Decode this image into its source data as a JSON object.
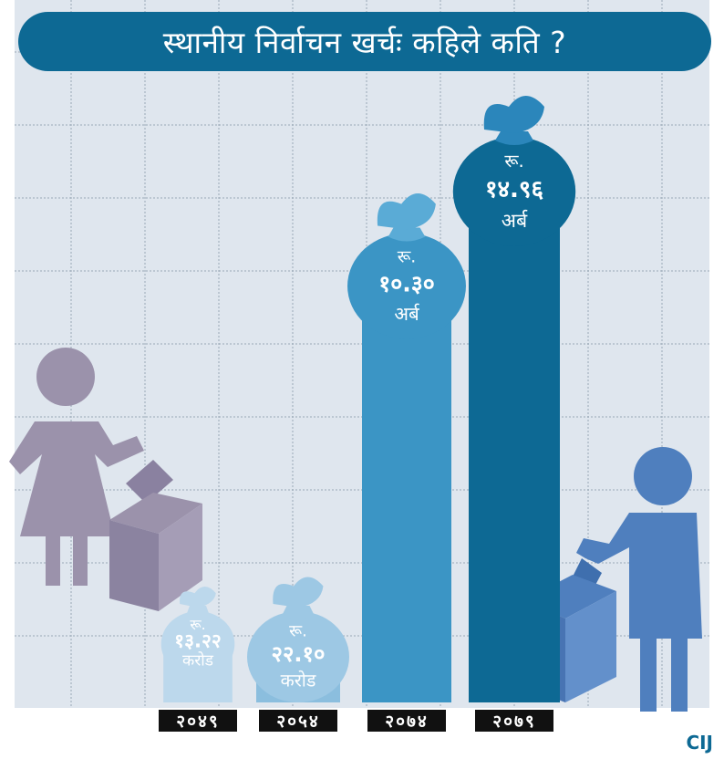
{
  "title": "स्थानीय निर्वाचन खर्चः कहिले कति ?",
  "logo_text": "CIJ",
  "colors": {
    "title_bg": "#0d6994",
    "grid_bg": "#dfe6ee",
    "grid_line": "#9aa8b6",
    "woman": "#9b92ab",
    "man": "#4f7fbe",
    "year_bg": "#111111"
  },
  "chart_data": {
    "type": "bar",
    "categories": [
      "२०४९",
      "२०५४",
      "२०७४",
      "२०७९"
    ],
    "values_label_currency": "रू.",
    "values": [
      13.22,
      22.1,
      10.3,
      14.96
    ],
    "units": [
      "करोड",
      "करोड",
      "अर्ब",
      "अर्ब"
    ],
    "value_labels": [
      "१३.२२",
      "२२.१०",
      "१०.३०",
      "१४.९६"
    ],
    "bar_colors": [
      "#a9cde6",
      "#8bbede",
      "#3b95c5",
      "#0d6994"
    ],
    "bag_colors": [
      "#bcd8ec",
      "#9dc8e4",
      "#5aabd6",
      "#2b86bb"
    ],
    "grid": true
  }
}
